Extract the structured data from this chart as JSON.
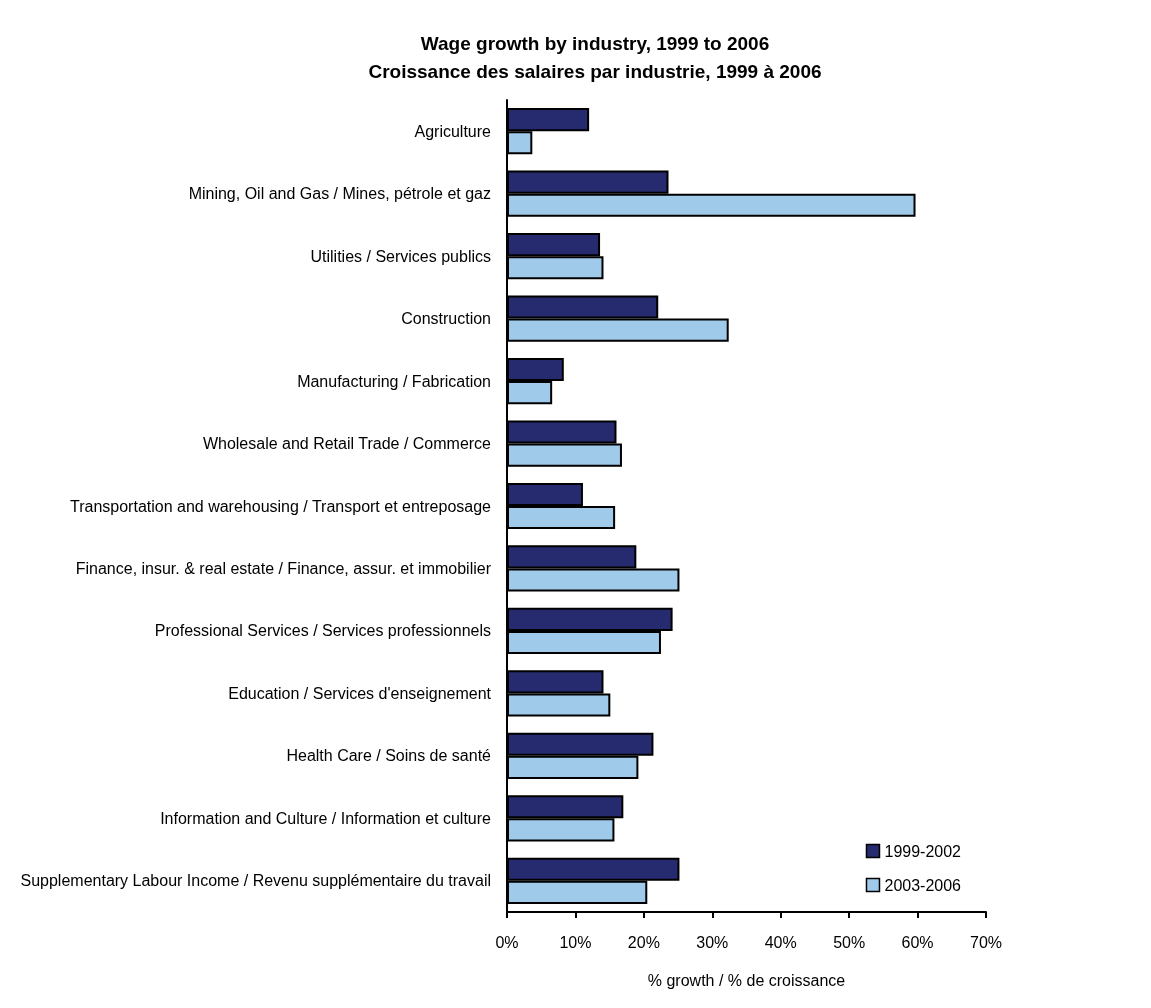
{
  "chart_data": {
    "type": "bar",
    "orientation": "horizontal",
    "title": "Wage growth by industry, 1999 to 2006\nCroissance des salaires par industrie, 1999 à 2006",
    "xlabel": "% growth / % de croissance",
    "categories": [
      "Agriculture",
      "Mining, Oil and Gas / Mines, pétrole et gaz",
      "Utilities / Services publics",
      "Construction",
      "Manufacturing / Fabrication",
      "Wholesale and Retail Trade / Commerce",
      "Transportation and warehousing / Transport et entreposage",
      "Finance, insur. & real estate / Finance, assur. et immobilier",
      "Professional Services / Services professionnels",
      "Education / Services d'enseignement",
      "Health Care / Soins de santé",
      "Information and Culture / Information et culture",
      "Supplementary Labour Income / Revenu supplémentaire du travail"
    ],
    "series": [
      {
        "name": "1999-2002",
        "color": "#262a6e",
        "values": [
          12.0,
          23.6,
          13.6,
          22.1,
          8.3,
          16.0,
          11.1,
          18.9,
          24.2,
          14.1,
          21.4,
          17.0,
          25.2
        ]
      },
      {
        "name": "2003-2006",
        "color": "#9fcaea",
        "values": [
          3.7,
          59.7,
          14.1,
          32.4,
          6.6,
          16.8,
          15.8,
          25.2,
          22.5,
          15.1,
          19.2,
          15.7,
          20.5
        ]
      }
    ],
    "xlim": [
      0,
      70
    ],
    "xticks": [
      {
        "value": 0,
        "label": "0%"
      },
      {
        "value": 10,
        "label": "10%"
      },
      {
        "value": 20,
        "label": "20%"
      },
      {
        "value": 30,
        "label": "30%"
      },
      {
        "value": 40,
        "label": "40%"
      },
      {
        "value": 50,
        "label": "50%"
      },
      {
        "value": 60,
        "label": "60%"
      },
      {
        "value": 70,
        "label": "70%"
      }
    ],
    "grid": false,
    "legend": "bottom right"
  }
}
